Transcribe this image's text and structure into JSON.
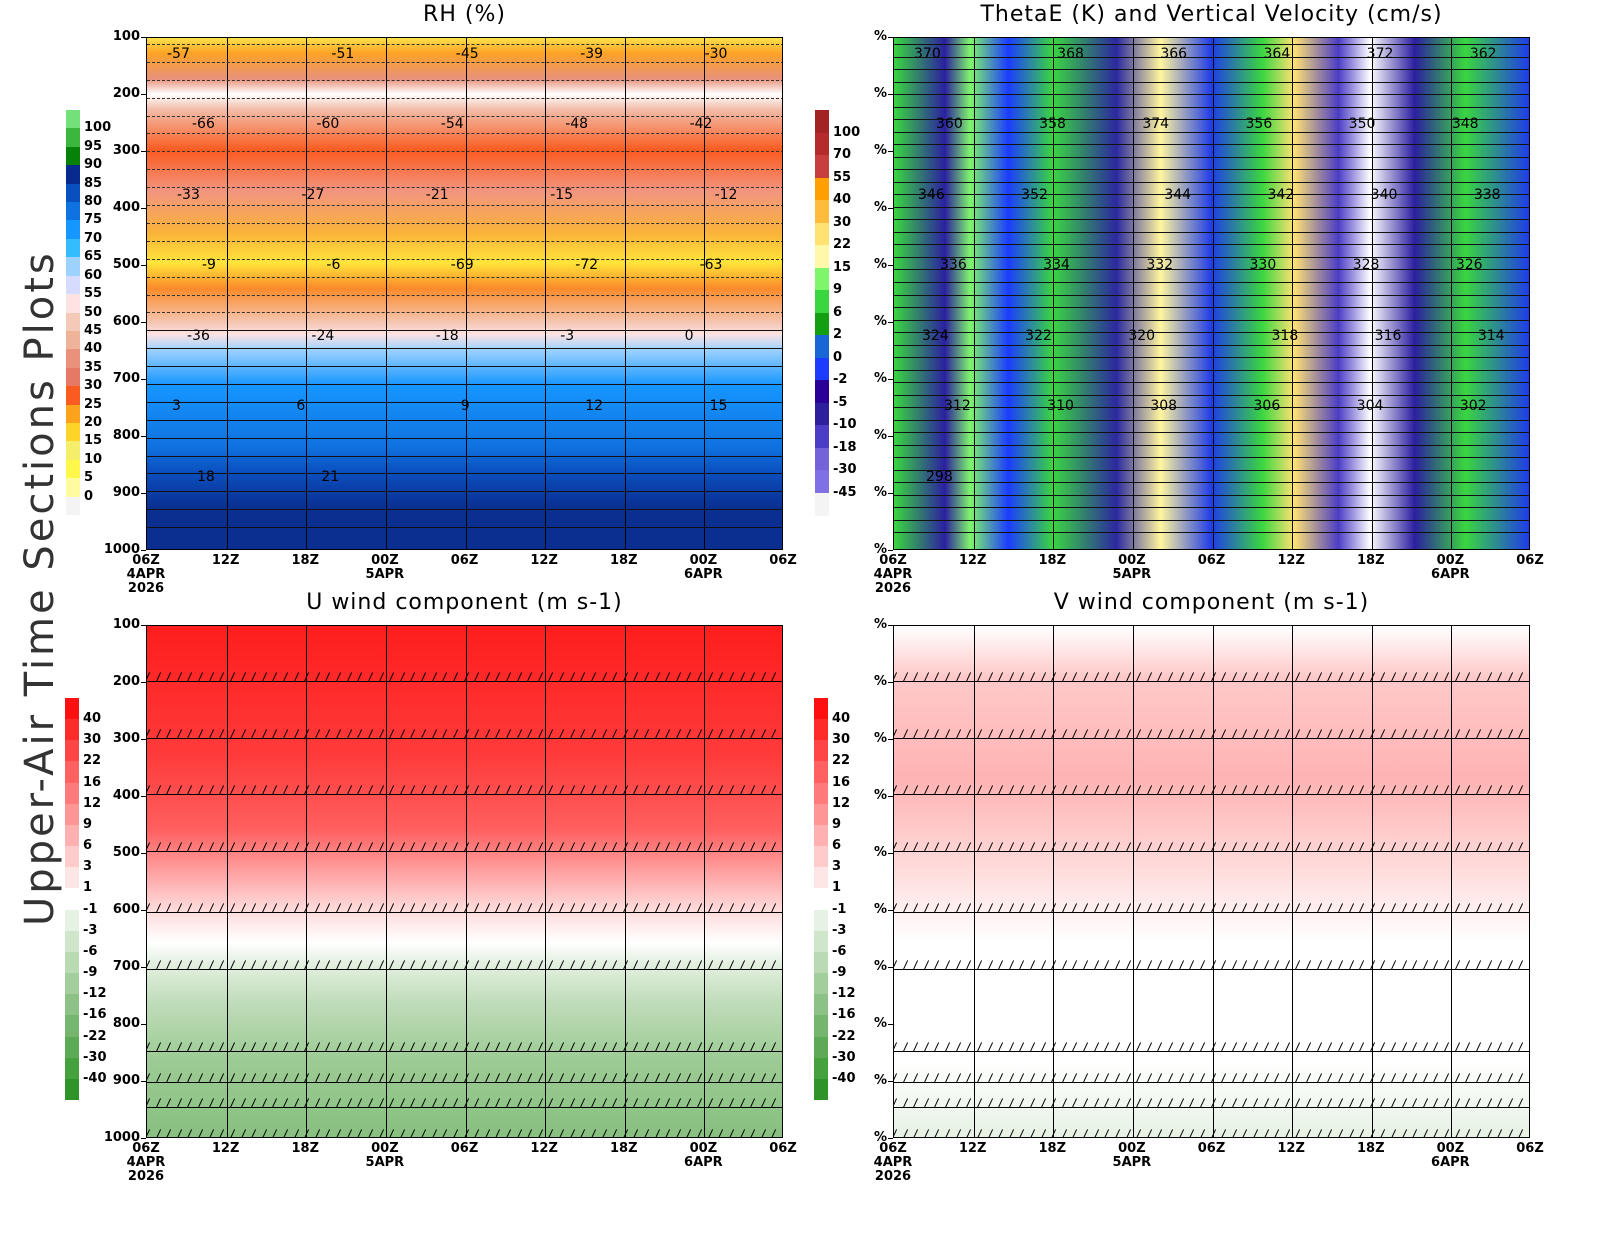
{
  "side_title": "Upper-Air Time Sections Plots",
  "chart_data": [
    {
      "type": "heatmap",
      "title": "RH (%)",
      "ylim": [
        1000,
        100
      ],
      "yticks": [
        "100",
        "200",
        "300",
        "400",
        "500",
        "600",
        "700",
        "800",
        "900",
        "1000"
      ],
      "xticks": [
        "06Z\n4APR\n2026",
        "12Z",
        "18Z",
        "00Z\n5APR",
        "06Z",
        "12Z",
        "18Z",
        "00Z\n6APR",
        "06Z"
      ],
      "colorbar": [
        "100",
        "95",
        "90",
        "85",
        "80",
        "75",
        "70",
        "65",
        "60",
        "55",
        "50",
        "45",
        "40",
        "35",
        "30",
        "25",
        "20",
        "15",
        "10",
        "5",
        "0"
      ],
      "colors": [
        "#74e07a",
        "#3db63d",
        "#078207",
        "#072a8e",
        "#0a4fbf",
        "#0e72e0",
        "#1696ff",
        "#33bdff",
        "#9dd2ff",
        "#d6dcff",
        "#fde3e4",
        "#f5c9b8",
        "#efb39a",
        "#e9917a",
        "#e67966",
        "#fa5b20",
        "#fba31d",
        "#ffd428",
        "#f4ee6a",
        "#fff84a",
        "#fffca0",
        "#f4f4f4"
      ],
      "contour_labels": [
        "-57",
        "-51",
        "-45",
        "-39",
        "-30",
        "-66",
        "-60",
        "-54",
        "-48",
        "-42",
        "-33",
        "-27",
        "-21",
        "-15",
        "-12",
        "-9",
        "-6",
        "-69",
        "-72",
        "-63",
        "-36",
        "-24",
        "-18",
        "-3",
        "0",
        "3",
        "6",
        "9",
        "12",
        "15",
        "18",
        "21"
      ]
    },
    {
      "type": "heatmap",
      "title": "ThetaE (K) and Vertical Velocity (cm/s)",
      "yticks": [
        "%",
        "%",
        "%",
        "%",
        "%",
        "%",
        "%",
        "%",
        "%",
        "%"
      ],
      "xticks": [
        "06Z\n4APR\n2026",
        "12Z",
        "18Z",
        "00Z\n5APR",
        "06Z",
        "12Z",
        "18Z",
        "00Z\n6APR",
        "06Z"
      ],
      "colorbar": [
        "100",
        "70",
        "55",
        "40",
        "30",
        "22",
        "15",
        "9",
        "6",
        "2",
        "0",
        "-2",
        "-5",
        "-10",
        "-18",
        "-30",
        "-45"
      ],
      "colors": [
        "#a32323",
        "#b52a2a",
        "#c83e3e",
        "#ff9f00",
        "#ffbb3b",
        "#ffe272",
        "#fff8a8",
        "#7ff56b",
        "#3ad640",
        "#12a012",
        "#1967d6",
        "#1c3bff",
        "#2a0098",
        "#2e209c",
        "#4b3dc6",
        "#7462d8",
        "#8070e6",
        "#f4f4f4"
      ],
      "contour_labels": [
        "370",
        "368",
        "366",
        "364",
        "372",
        "362",
        "360",
        "358",
        "374",
        "356",
        "350",
        "348",
        "346",
        "352",
        "344",
        "342",
        "340",
        "338",
        "336",
        "334",
        "332",
        "330",
        "328",
        "326",
        "324",
        "322",
        "320",
        "318",
        "316",
        "314",
        "312",
        "310",
        "308",
        "306",
        "304",
        "302",
        "298"
      ]
    },
    {
      "type": "heatmap",
      "title": "U wind component (m s-1)",
      "yticks": [
        "100",
        "200",
        "300",
        "400",
        "500",
        "600",
        "700",
        "800",
        "900",
        "1000"
      ],
      "xticks": [
        "06Z\n4APR\n2026",
        "12Z",
        "18Z",
        "00Z\n5APR",
        "06Z",
        "12Z",
        "18Z",
        "00Z\n6APR",
        "06Z"
      ],
      "colorbar": [
        "40",
        "30",
        "22",
        "16",
        "12",
        "9",
        "6",
        "3",
        "1",
        "-1",
        "-3",
        "-6",
        "-9",
        "-12",
        "-16",
        "-22",
        "-30",
        "-40"
      ],
      "colors": [
        "#ff1010",
        "#ff2a2a",
        "#ff4545",
        "#ff6060",
        "#ff7b7b",
        "#ff9696",
        "#ffb0b0",
        "#ffcbcb",
        "#ffe6e6",
        "#fff",
        "#e6f2e4",
        "#cfe6ca",
        "#b9dab3",
        "#a2ce9b",
        "#8cc285",
        "#74b66d",
        "#5daa56",
        "#45a03e",
        "#2e942a"
      ]
    },
    {
      "type": "heatmap",
      "title": "V wind component (m s-1)",
      "yticks": [
        "%",
        "%",
        "%",
        "%",
        "%",
        "%",
        "%",
        "%",
        "%",
        "%"
      ],
      "xticks": [
        "06Z\n4APR\n2026",
        "12Z",
        "18Z",
        "00Z\n5APR",
        "06Z",
        "12Z",
        "18Z",
        "00Z\n6APR",
        "06Z"
      ],
      "colorbar": [
        "40",
        "30",
        "22",
        "16",
        "12",
        "9",
        "6",
        "3",
        "1",
        "-1",
        "-3",
        "-6",
        "-9",
        "-12",
        "-16",
        "-22",
        "-30",
        "-40"
      ],
      "colors": [
        "#ff1010",
        "#ff2a2a",
        "#ff4545",
        "#ff6060",
        "#ff7b7b",
        "#ff9696",
        "#ffb0b0",
        "#ffcbcb",
        "#ffe6e6",
        "#fff",
        "#e6f2e4",
        "#cfe6ca",
        "#b9dab3",
        "#a2ce9b",
        "#8cc285",
        "#74b66d",
        "#5daa56",
        "#45a03e",
        "#2e942a"
      ]
    }
  ]
}
